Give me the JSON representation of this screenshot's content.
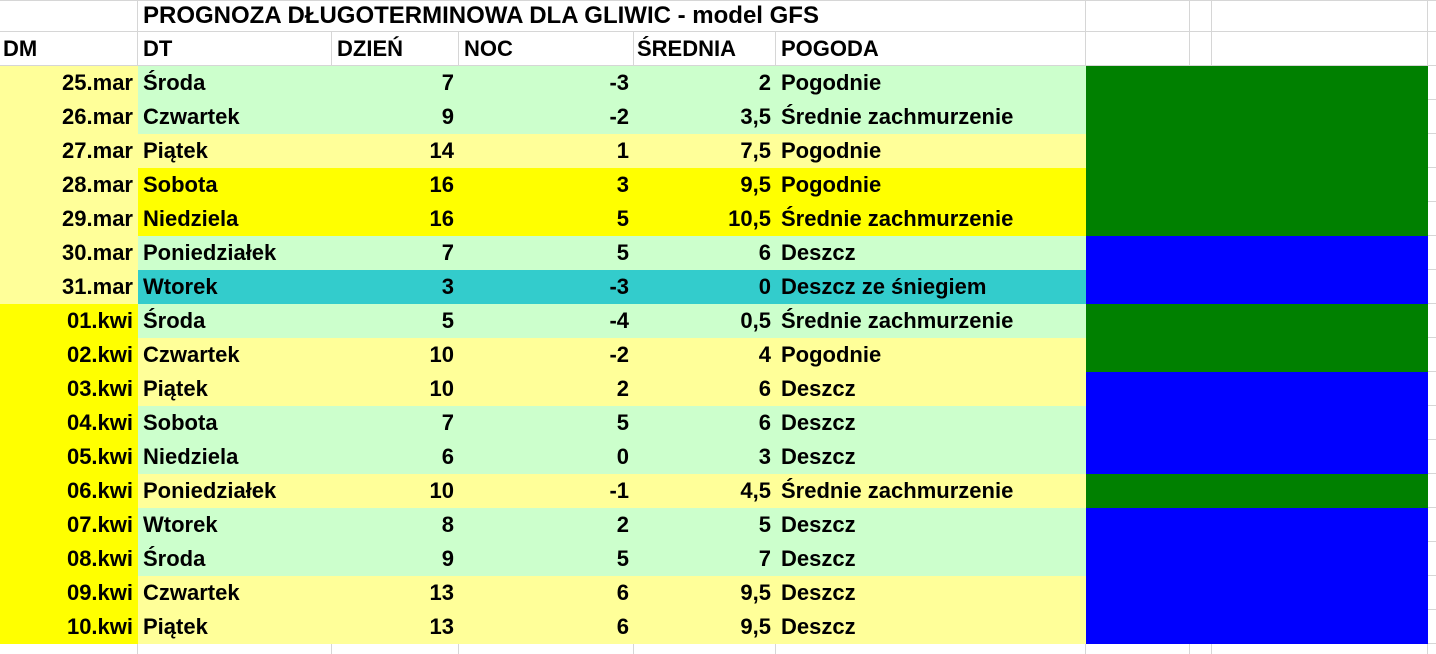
{
  "title": "PROGNOZA DŁUGOTERMINOWA DLA GLIWIC - model GFS",
  "columns": {
    "dm": "DM",
    "dt": "DT",
    "day": "DZIEŃ",
    "night": "NOC",
    "avg": "ŚREDNIA",
    "weather": "POGODA"
  },
  "colors": {
    "pale_yellow": "#FFFF99",
    "bright_yellow": "#FFFF00",
    "mint": "#CCFFCC",
    "teal": "#33CCCC",
    "green": "#008000",
    "blue": "#0000FF",
    "white": "#FFFFFF",
    "gridline": "#D6D6D6"
  },
  "rows": [
    {
      "dm": "25.mar",
      "dt": "Środa",
      "day": "7",
      "night": "-3",
      "avg": "2",
      "weather": "Pogodnie",
      "dm_bg": "pale_yellow",
      "row_bg": "mint",
      "indicator": "green"
    },
    {
      "dm": "26.mar",
      "dt": "Czwartek",
      "day": "9",
      "night": "-2",
      "avg": "3,5",
      "weather": "Średnie zachmurzenie",
      "dm_bg": "pale_yellow",
      "row_bg": "mint",
      "indicator": "green"
    },
    {
      "dm": "27.mar",
      "dt": "Piątek",
      "day": "14",
      "night": "1",
      "avg": "7,5",
      "weather": "Pogodnie",
      "dm_bg": "pale_yellow",
      "row_bg": "pale_yellow",
      "indicator": "green"
    },
    {
      "dm": "28.mar",
      "dt": "Sobota",
      "day": "16",
      "night": "3",
      "avg": "9,5",
      "weather": "Pogodnie",
      "dm_bg": "pale_yellow",
      "row_bg": "bright_yellow",
      "indicator": "green"
    },
    {
      "dm": "29.mar",
      "dt": "Niedziela",
      "day": "16",
      "night": "5",
      "avg": "10,5",
      "weather": "Średnie zachmurzenie",
      "dm_bg": "pale_yellow",
      "row_bg": "bright_yellow",
      "indicator": "green"
    },
    {
      "dm": "30.mar",
      "dt": "Poniedziałek",
      "day": "7",
      "night": "5",
      "avg": "6",
      "weather": "Deszcz",
      "dm_bg": "pale_yellow",
      "row_bg": "mint",
      "indicator": "blue"
    },
    {
      "dm": "31.mar",
      "dt": "Wtorek",
      "day": "3",
      "night": "-3",
      "avg": "0",
      "weather": "Deszcz ze śniegiem",
      "dm_bg": "pale_yellow",
      "row_bg": "teal",
      "indicator": "blue"
    },
    {
      "dm": "01.kwi",
      "dt": "Środa",
      "day": "5",
      "night": "-4",
      "avg": "0,5",
      "weather": "Średnie zachmurzenie",
      "dm_bg": "bright_yellow",
      "row_bg": "mint",
      "indicator": "green"
    },
    {
      "dm": "02.kwi",
      "dt": "Czwartek",
      "day": "10",
      "night": "-2",
      "avg": "4",
      "weather": "Pogodnie",
      "dm_bg": "bright_yellow",
      "row_bg": "pale_yellow",
      "indicator": "green"
    },
    {
      "dm": "03.kwi",
      "dt": "Piątek",
      "day": "10",
      "night": "2",
      "avg": "6",
      "weather": "Deszcz",
      "dm_bg": "bright_yellow",
      "row_bg": "pale_yellow",
      "indicator": "blue"
    },
    {
      "dm": "04.kwi",
      "dt": "Sobota",
      "day": "7",
      "night": "5",
      "avg": "6",
      "weather": "Deszcz",
      "dm_bg": "bright_yellow",
      "row_bg": "mint",
      "indicator": "blue"
    },
    {
      "dm": "05.kwi",
      "dt": "Niedziela",
      "day": "6",
      "night": "0",
      "avg": "3",
      "weather": "Deszcz",
      "dm_bg": "bright_yellow",
      "row_bg": "mint",
      "indicator": "blue"
    },
    {
      "dm": "06.kwi",
      "dt": "Poniedziałek",
      "day": "10",
      "night": "-1",
      "avg": "4,5",
      "weather": "Średnie zachmurzenie",
      "dm_bg": "bright_yellow",
      "row_bg": "pale_yellow",
      "indicator": "green"
    },
    {
      "dm": "07.kwi",
      "dt": "Wtorek",
      "day": "8",
      "night": "2",
      "avg": "5",
      "weather": "Deszcz",
      "dm_bg": "bright_yellow",
      "row_bg": "mint",
      "indicator": "blue"
    },
    {
      "dm": "08.kwi",
      "dt": "Środa",
      "day": "9",
      "night": "5",
      "avg": "7",
      "weather": "Deszcz",
      "dm_bg": "bright_yellow",
      "row_bg": "mint",
      "indicator": "blue"
    },
    {
      "dm": "09.kwi",
      "dt": "Czwartek",
      "day": "13",
      "night": "6",
      "avg": "9,5",
      "weather": "Deszcz",
      "dm_bg": "bright_yellow",
      "row_bg": "pale_yellow",
      "indicator": "blue"
    },
    {
      "dm": "10.kwi",
      "dt": "Piątek",
      "day": "13",
      "night": "6",
      "avg": "9,5",
      "weather": "Deszcz",
      "dm_bg": "bright_yellow",
      "row_bg": "pale_yellow",
      "indicator": "blue"
    }
  ]
}
